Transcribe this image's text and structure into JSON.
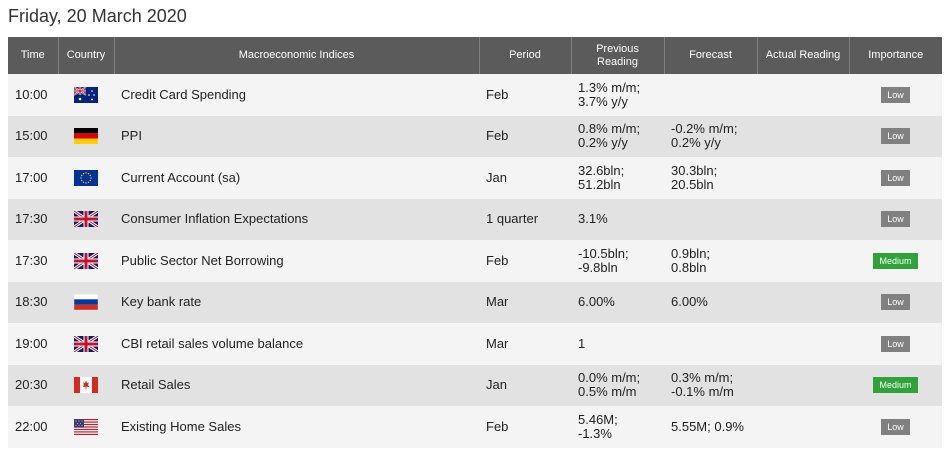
{
  "page": {
    "title": "Friday, 20 March 2020"
  },
  "columns": {
    "time": "Time",
    "country": "Country",
    "indices": "Macroeconomic Indices",
    "period": "Period",
    "previous_1": "Previous",
    "previous_2": "Reading",
    "forecast": "Forecast",
    "actual": "Actual Reading",
    "importance": "Importance"
  },
  "colors": {
    "header_bg": "#5b5b5b",
    "low": "#808080",
    "medium": "#2fa23a"
  },
  "rows": [
    {
      "time": "10:00",
      "country": "australia-flag-icon",
      "indicator": "Credit Card Spending",
      "period": "Feb",
      "previous": [
        "1.3% m/m;",
        "3.7% y/y"
      ],
      "forecast": [
        "",
        ""
      ],
      "actual": "",
      "importance": "Low",
      "level": "low"
    },
    {
      "time": "15:00",
      "country": "germany-flag-icon",
      "indicator": "PPI",
      "period": "Feb",
      "previous": [
        "0.8% m/m;",
        "0.2% y/y"
      ],
      "forecast": [
        "-0.2% m/m;",
        "0.2% y/y"
      ],
      "actual": "",
      "importance": "Low",
      "level": "low"
    },
    {
      "time": "17:00",
      "country": "eu-flag-icon",
      "indicator": "Current Account (sa)",
      "period": "Jan",
      "previous": [
        "32.6bln;",
        "51.2bln"
      ],
      "forecast": [
        "30.3bln;",
        "20.5bln"
      ],
      "actual": "",
      "importance": "Low",
      "level": "low"
    },
    {
      "time": "17:30",
      "country": "uk-flag-icon",
      "indicator": "Consumer Inflation Expectations",
      "period": "1 quarter",
      "previous": [
        "3.1%",
        ""
      ],
      "forecast": [
        "",
        ""
      ],
      "actual": "",
      "importance": "Low",
      "level": "low"
    },
    {
      "time": "17:30",
      "country": "uk-flag-icon",
      "indicator": "Public Sector Net Borrowing",
      "period": "Feb",
      "previous": [
        "-10.5bln;",
        "-9.8bln"
      ],
      "forecast": [
        "0.9bln;",
        "0.8bln"
      ],
      "actual": "",
      "importance": "Medium",
      "level": "medium"
    },
    {
      "time": "18:30",
      "country": "russia-flag-icon",
      "indicator": "Key bank rate",
      "period": "Mar",
      "previous": [
        "6.00%",
        ""
      ],
      "forecast": [
        "6.00%",
        ""
      ],
      "actual": "",
      "importance": "Low",
      "level": "low"
    },
    {
      "time": "19:00",
      "country": "uk-flag-icon",
      "indicator": "CBI retail sales volume balance",
      "period": "Mar",
      "previous": [
        "1",
        ""
      ],
      "forecast": [
        "",
        ""
      ],
      "actual": "",
      "importance": "Low",
      "level": "low"
    },
    {
      "time": "20:30",
      "country": "canada-flag-icon",
      "indicator": "Retail Sales",
      "period": "Jan",
      "previous": [
        "0.0% m/m;",
        "0.5% m/m"
      ],
      "forecast": [
        "0.3% m/m;",
        "-0.1% m/m"
      ],
      "actual": "",
      "importance": "Medium",
      "level": "medium"
    },
    {
      "time": "22:00",
      "country": "usa-flag-icon",
      "indicator": "Existing Home Sales",
      "period": "Feb",
      "previous": [
        "5.46M;",
        "-1.3%"
      ],
      "forecast": [
        "5.55M; 0.9%",
        ""
      ],
      "actual": "",
      "importance": "Low",
      "level": "low"
    }
  ]
}
